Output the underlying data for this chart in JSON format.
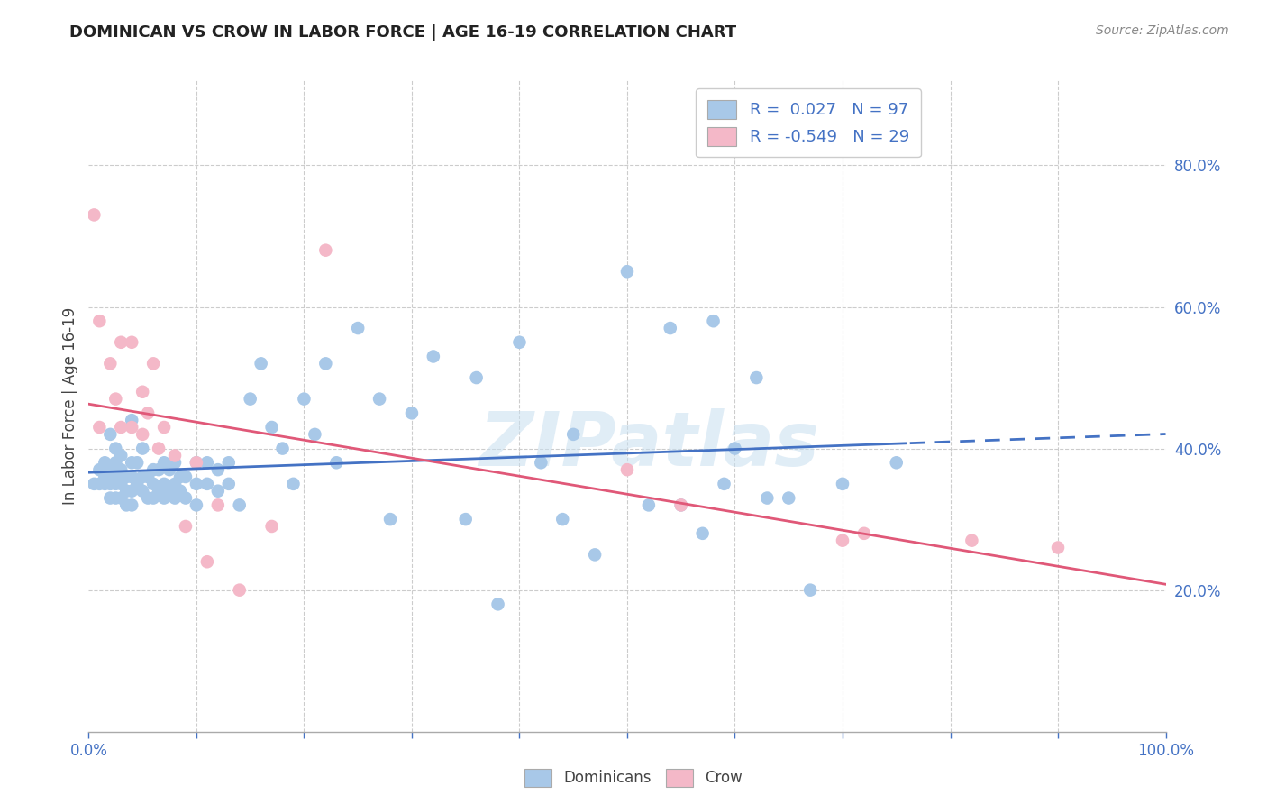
{
  "title": "DOMINICAN VS CROW IN LABOR FORCE | AGE 16-19 CORRELATION CHART",
  "source": "Source: ZipAtlas.com",
  "ylabel": "In Labor Force | Age 16-19",
  "xlim": [
    0,
    1.0
  ],
  "ylim": [
    0,
    0.92
  ],
  "dominican_R": 0.027,
  "dominican_N": 97,
  "crow_R": -0.549,
  "crow_N": 29,
  "blue_dot_color": "#a8c8e8",
  "pink_dot_color": "#f4b8c8",
  "blue_line_color": "#4472c4",
  "pink_line_color": "#e05878",
  "tick_color": "#4472c4",
  "grid_color": "#cccccc",
  "legend_label1": "Dominicans",
  "legend_label2": "Crow",
  "watermark": "ZIPatlas",
  "dominican_x": [
    0.005,
    0.01,
    0.01,
    0.015,
    0.015,
    0.015,
    0.02,
    0.02,
    0.02,
    0.02,
    0.025,
    0.025,
    0.025,
    0.025,
    0.025,
    0.03,
    0.03,
    0.03,
    0.03,
    0.035,
    0.035,
    0.035,
    0.04,
    0.04,
    0.04,
    0.04,
    0.04,
    0.045,
    0.045,
    0.05,
    0.05,
    0.05,
    0.055,
    0.055,
    0.06,
    0.06,
    0.06,
    0.065,
    0.065,
    0.07,
    0.07,
    0.07,
    0.075,
    0.075,
    0.08,
    0.08,
    0.08,
    0.085,
    0.085,
    0.09,
    0.09,
    0.1,
    0.1,
    0.1,
    0.11,
    0.11,
    0.12,
    0.12,
    0.13,
    0.13,
    0.14,
    0.15,
    0.16,
    0.17,
    0.18,
    0.19,
    0.2,
    0.21,
    0.22,
    0.23,
    0.25,
    0.27,
    0.28,
    0.3,
    0.32,
    0.35,
    0.36,
    0.38,
    0.4,
    0.42,
    0.44,
    0.45,
    0.47,
    0.5,
    0.52,
    0.54,
    0.55,
    0.57,
    0.58,
    0.59,
    0.6,
    0.62,
    0.63,
    0.65,
    0.67,
    0.7,
    0.75
  ],
  "dominican_y": [
    0.35,
    0.35,
    0.37,
    0.35,
    0.36,
    0.38,
    0.33,
    0.35,
    0.37,
    0.42,
    0.33,
    0.35,
    0.36,
    0.38,
    0.4,
    0.33,
    0.35,
    0.37,
    0.39,
    0.32,
    0.34,
    0.36,
    0.32,
    0.34,
    0.36,
    0.38,
    0.44,
    0.35,
    0.38,
    0.34,
    0.36,
    0.4,
    0.33,
    0.36,
    0.33,
    0.35,
    0.37,
    0.34,
    0.37,
    0.33,
    0.35,
    0.38,
    0.34,
    0.37,
    0.33,
    0.35,
    0.38,
    0.34,
    0.36,
    0.33,
    0.36,
    0.32,
    0.35,
    0.38,
    0.35,
    0.38,
    0.34,
    0.37,
    0.35,
    0.38,
    0.32,
    0.47,
    0.52,
    0.43,
    0.4,
    0.35,
    0.47,
    0.42,
    0.52,
    0.38,
    0.57,
    0.47,
    0.3,
    0.45,
    0.53,
    0.3,
    0.5,
    0.18,
    0.55,
    0.38,
    0.3,
    0.42,
    0.25,
    0.65,
    0.32,
    0.57,
    0.32,
    0.28,
    0.58,
    0.35,
    0.4,
    0.5,
    0.33,
    0.33,
    0.2,
    0.35,
    0.38
  ],
  "crow_x": [
    0.005,
    0.01,
    0.01,
    0.02,
    0.025,
    0.03,
    0.03,
    0.04,
    0.04,
    0.05,
    0.05,
    0.055,
    0.06,
    0.065,
    0.07,
    0.08,
    0.09,
    0.1,
    0.11,
    0.12,
    0.14,
    0.17,
    0.22,
    0.5,
    0.55,
    0.7,
    0.72,
    0.82,
    0.9
  ],
  "crow_y": [
    0.73,
    0.58,
    0.43,
    0.52,
    0.47,
    0.55,
    0.43,
    0.55,
    0.43,
    0.48,
    0.42,
    0.45,
    0.52,
    0.4,
    0.43,
    0.39,
    0.29,
    0.38,
    0.24,
    0.32,
    0.2,
    0.29,
    0.68,
    0.37,
    0.32,
    0.27,
    0.28,
    0.27,
    0.26
  ]
}
